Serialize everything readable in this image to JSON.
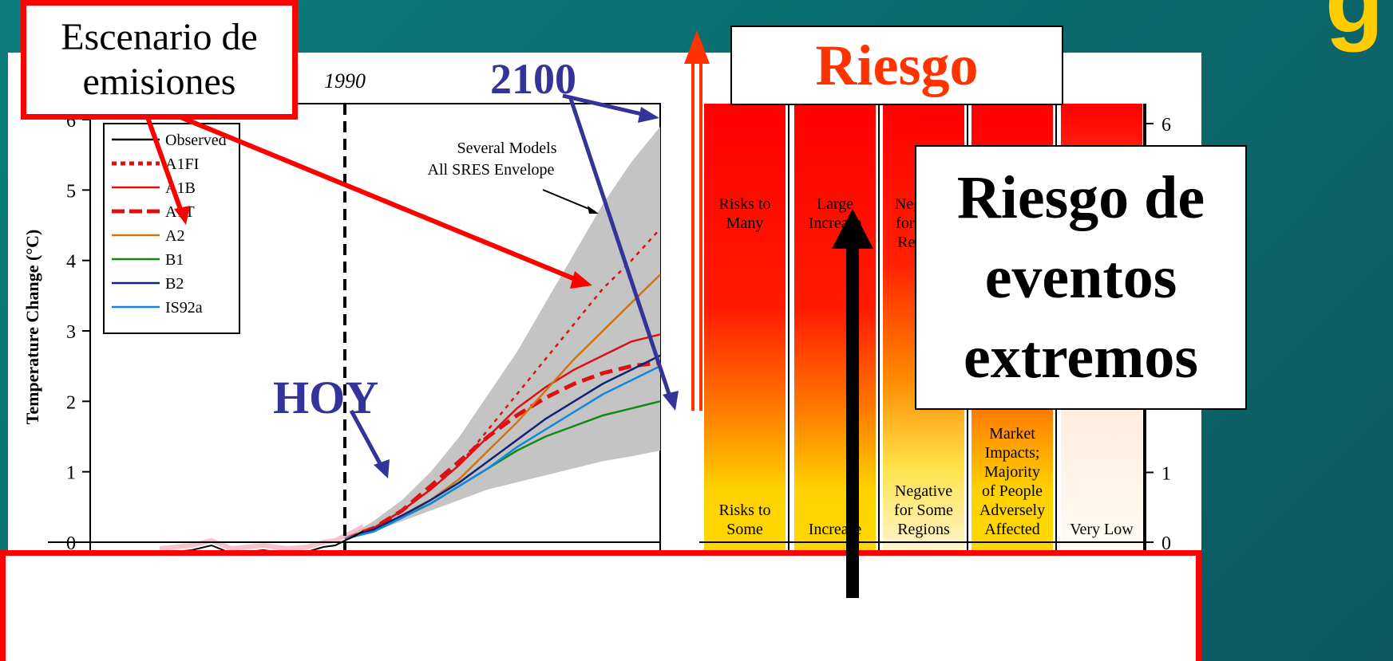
{
  "slide": {
    "title_fragment": "g",
    "bg_color": "#0a7d7c"
  },
  "annotations": {
    "scenario_box": {
      "line1": "Escenario de",
      "line2": "emisiones",
      "border_color": "#ff0000"
    },
    "year_2100": "2100",
    "hoy": "HOY",
    "riesgo": "Riesgo",
    "extreme_events": {
      "line1": "Riesgo de",
      "line2": "eventos",
      "line3": "extremos"
    },
    "annotation_color_blue": "#333399",
    "annotation_color_red": "#ff3300"
  },
  "chart_data": [
    {
      "type": "line",
      "title": "",
      "xlabel": "",
      "ylabel": "Temperature Change (°C)",
      "ylim": [
        0,
        6
      ],
      "yticks": [
        "0",
        "1",
        "2",
        "3",
        "4",
        "5",
        "6"
      ],
      "vline_label": "1990",
      "envelope_label": {
        "line1": "Several Models",
        "line2": "All SRES Envelope"
      },
      "legend": [
        {
          "name": "Observed",
          "color": "#000000",
          "style": "solid"
        },
        {
          "name": "A1FI",
          "color": "#dd1111",
          "style": "dotted"
        },
        {
          "name": "A1B",
          "color": "#dd1111",
          "style": "solid"
        },
        {
          "name": "A1T",
          "color": "#dd1111",
          "style": "dashed"
        },
        {
          "name": "A2",
          "color": "#cc7711",
          "style": "solid"
        },
        {
          "name": "B1",
          "color": "#118811",
          "style": "solid"
        },
        {
          "name": "B2",
          "color": "#112277",
          "style": "solid"
        },
        {
          "name": "IS92a",
          "color": "#1188dd",
          "style": "solid"
        }
      ],
      "x": [
        1990,
        2000,
        2010,
        2020,
        2030,
        2040,
        2050,
        2060,
        2070,
        2080,
        2090,
        2100
      ],
      "envelope": {
        "lower": [
          0.05,
          0.15,
          0.3,
          0.45,
          0.6,
          0.75,
          0.85,
          0.95,
          1.05,
          1.15,
          1.22,
          1.3
        ],
        "upper": [
          0.05,
          0.3,
          0.6,
          1.0,
          1.5,
          2.1,
          2.7,
          3.4,
          4.1,
          4.8,
          5.4,
          5.9
        ]
      },
      "series": [
        {
          "name": "A1FI",
          "values": [
            0.05,
            0.2,
            0.45,
            0.75,
            1.1,
            1.6,
            2.1,
            2.6,
            3.1,
            3.6,
            4.0,
            4.45
          ]
        },
        {
          "name": "A1B",
          "values": [
            0.05,
            0.2,
            0.45,
            0.75,
            1.1,
            1.5,
            1.9,
            2.2,
            2.45,
            2.65,
            2.85,
            2.95
          ]
        },
        {
          "name": "A1T",
          "values": [
            0.05,
            0.2,
            0.45,
            0.8,
            1.15,
            1.5,
            1.8,
            2.05,
            2.25,
            2.4,
            2.5,
            2.55
          ]
        },
        {
          "name": "A2",
          "values": [
            0.05,
            0.15,
            0.35,
            0.6,
            0.9,
            1.3,
            1.7,
            2.15,
            2.6,
            3.0,
            3.4,
            3.8
          ]
        },
        {
          "name": "B1",
          "values": [
            0.05,
            0.15,
            0.35,
            0.55,
            0.8,
            1.05,
            1.3,
            1.5,
            1.65,
            1.8,
            1.9,
            2.0
          ]
        },
        {
          "name": "B2",
          "values": [
            0.05,
            0.18,
            0.38,
            0.6,
            0.85,
            1.15,
            1.45,
            1.75,
            2.0,
            2.25,
            2.45,
            2.65
          ]
        },
        {
          "name": "IS92a",
          "values": [
            0.05,
            0.15,
            0.35,
            0.55,
            0.8,
            1.05,
            1.35,
            1.6,
            1.85,
            2.1,
            2.3,
            2.5
          ]
        }
      ]
    },
    {
      "type": "table",
      "title": "",
      "ylim": [
        0,
        6
      ],
      "yticks": [
        "0",
        "1",
        "6"
      ],
      "columns": [
        {
          "top": "Risks to Many",
          "bottom": "Risks to Some"
        },
        {
          "top": "Large Increase",
          "bottom": "Increase"
        },
        {
          "top": "Negative for Most Regions",
          "bottom": "Negative for Some Regions"
        },
        {
          "top": "",
          "bottom": "Market Impacts; Majority of People Adversely Affected"
        },
        {
          "top": "",
          "bottom": "Very Low"
        }
      ]
    }
  ]
}
